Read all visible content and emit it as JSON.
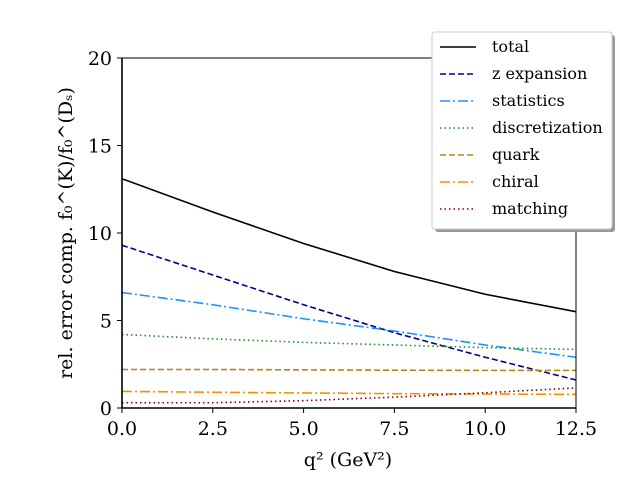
{
  "chart_data": {
    "type": "line",
    "xlabel": "q² (GeV²)",
    "ylabel": "rel. error comp. f₀^(K)/f₀^(Dₛ)",
    "xlim": [
      0,
      12.5
    ],
    "ylim": [
      0,
      20
    ],
    "xticks": [
      0.0,
      2.5,
      5.0,
      7.5,
      10.0,
      12.5
    ],
    "xtick_labels": [
      "0.0",
      "2.5",
      "5.0",
      "7.5",
      "10.0",
      "12.5"
    ],
    "yticks": [
      0,
      5,
      10,
      15,
      20
    ],
    "ytick_labels": [
      "0",
      "5",
      "10",
      "15",
      "20"
    ],
    "grid": false,
    "legend_position": "top-right",
    "series": [
      {
        "name": "total",
        "color": "#000000",
        "dash": "solid",
        "x": [
          0,
          2.5,
          5.0,
          7.5,
          10.0,
          12.5
        ],
        "y": [
          13.1,
          11.2,
          9.4,
          7.8,
          6.5,
          5.5
        ]
      },
      {
        "name": "z expansion",
        "color": "#00008b",
        "dash": "dashed",
        "x": [
          0,
          2.5,
          5.0,
          7.5,
          10.0,
          12.5
        ],
        "y": [
          9.3,
          7.6,
          5.9,
          4.3,
          2.9,
          1.6
        ]
      },
      {
        "name": "statistics",
        "color": "#1e90ff",
        "dash": "dashdot",
        "x": [
          0,
          2.5,
          5.0,
          7.5,
          10.0,
          12.5
        ],
        "y": [
          6.6,
          5.9,
          5.1,
          4.4,
          3.6,
          2.9
        ]
      },
      {
        "name": "discretization",
        "color": "#228b22",
        "dash": "dotted",
        "x": [
          0,
          2.5,
          5.0,
          7.5,
          10.0,
          12.5
        ],
        "y": [
          4.2,
          3.95,
          3.75,
          3.6,
          3.45,
          3.35
        ]
      },
      {
        "name": "quark",
        "color": "#b8860b",
        "dash": "dashed",
        "x": [
          0,
          2.5,
          5.0,
          7.5,
          10.0,
          12.5
        ],
        "y": [
          2.2,
          2.2,
          2.18,
          2.16,
          2.15,
          2.15
        ]
      },
      {
        "name": "chiral",
        "color": "#ff8c00",
        "dash": "dashdot",
        "x": [
          0,
          2.5,
          5.0,
          7.5,
          10.0,
          12.5
        ],
        "y": [
          0.95,
          0.9,
          0.86,
          0.82,
          0.8,
          0.78
        ]
      },
      {
        "name": "matching",
        "color": "#8b0000",
        "dash": "dotted",
        "x": [
          0,
          2.5,
          5.0,
          7.5,
          10.0,
          12.5
        ],
        "y": [
          0.3,
          0.3,
          0.42,
          0.62,
          0.87,
          1.15
        ]
      }
    ]
  }
}
